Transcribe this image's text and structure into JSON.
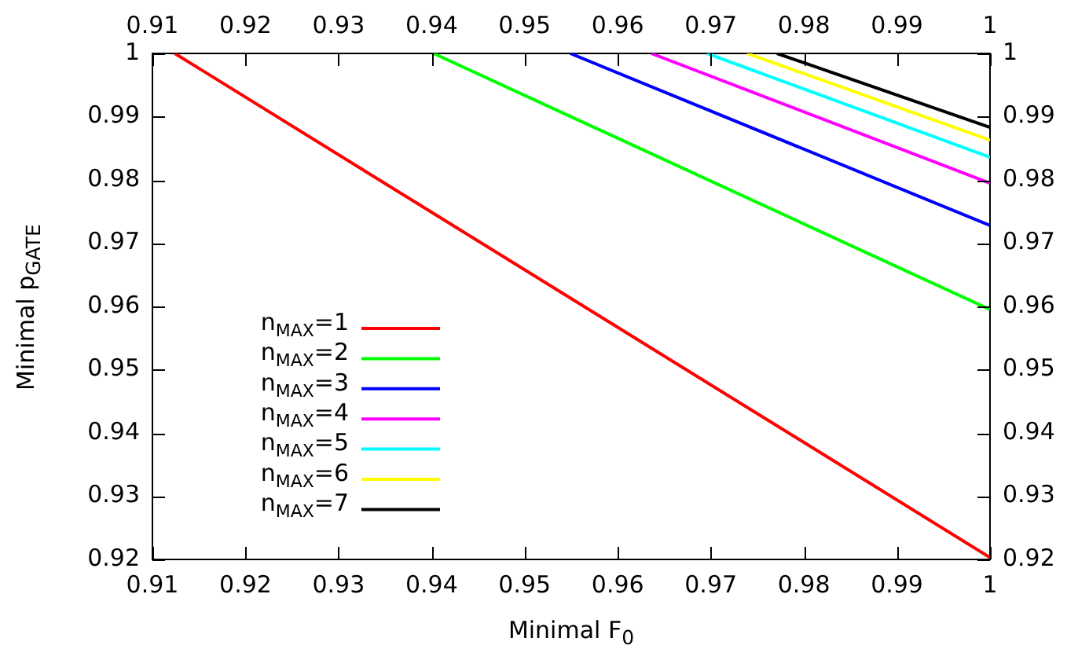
{
  "chart_data": {
    "type": "line",
    "xlabel": "Minimal F$_{0}$",
    "ylabel": "Minimal p$_{GATE}$",
    "xlim": [
      0.91,
      1
    ],
    "xticks": [
      0.91,
      0.92,
      0.93,
      0.94,
      0.95,
      0.96,
      0.97,
      0.98,
      0.99,
      1
    ],
    "x2lim": [
      0.91,
      1
    ],
    "x2ticks": [
      0.91,
      0.92,
      0.93,
      0.94,
      0.95,
      0.96,
      0.97,
      0.98,
      0.99,
      1
    ],
    "ylim": [
      0.92,
      1
    ],
    "yticks": [
      0.92,
      0.93,
      0.94,
      0.95,
      0.96,
      0.97,
      0.98,
      0.99,
      1
    ],
    "y2lim": [
      0.92,
      1
    ],
    "y2ticks": [
      0.92,
      0.93,
      0.94,
      0.95,
      0.96,
      0.97,
      0.98,
      0.99,
      1
    ],
    "legend": "left",
    "marker": "none",
    "line_style": "solid",
    "series": [
      {
        "name": "n$_{MAX}$=1",
        "color": "#ff0000",
        "x": [
          0.9124,
          1
        ],
        "values": [
          1,
          0.9203
        ]
      },
      {
        "name": "n$_{MAX}$=2",
        "color": "#00ff00",
        "x": [
          0.9402,
          1
        ],
        "values": [
          1,
          0.9595
        ]
      },
      {
        "name": "n$_{MAX}$=3",
        "color": "#0000ff",
        "x": [
          0.9549,
          1
        ],
        "values": [
          1,
          0.9728
        ]
      },
      {
        "name": "n$_{MAX}$=4",
        "color": "#ff00ff",
        "x": [
          0.9636,
          1
        ],
        "values": [
          1,
          0.9795
        ]
      },
      {
        "name": "n$_{MAX}$=5",
        "color": "#00ffff",
        "x": [
          0.9696,
          1
        ],
        "values": [
          1,
          0.9836
        ]
      },
      {
        "name": "n$_{MAX}$=6",
        "color": "#ffff00",
        "x": [
          0.9739,
          1
        ],
        "values": [
          1,
          0.9863
        ]
      },
      {
        "name": "n$_{MAX}$=7",
        "color": "#000000",
        "x": [
          0.9771,
          1
        ],
        "values": [
          1,
          0.9883
        ]
      }
    ]
  }
}
